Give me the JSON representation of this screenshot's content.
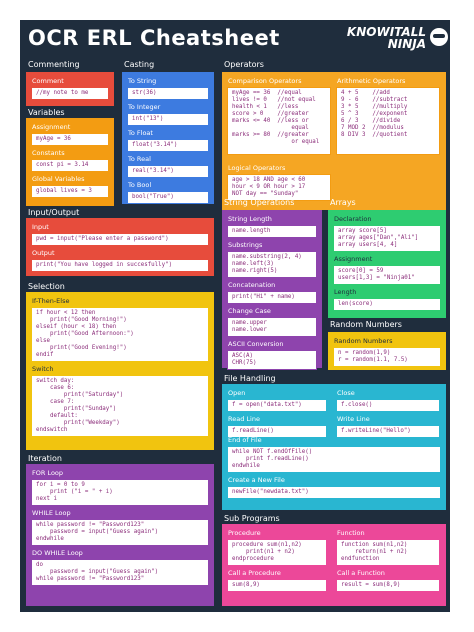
{
  "title": "OCR ERL Cheatsheet",
  "logo": {
    "line1": "KNOWITALL",
    "line2": "NINJA"
  },
  "sections": {
    "commenting": "Commenting",
    "casting": "Casting",
    "operators": "Operators",
    "variables": "Variables",
    "input_output": "Input/Output",
    "string_operations": "String Operations",
    "arrays": "Arrays",
    "selection": "Selection",
    "random_numbers": "Random Numbers",
    "file_handling": "File Handling",
    "iteration": "Iteration",
    "sub_programs": "Sub Programs"
  },
  "commenting": {
    "label": "Comment",
    "code": "//my note to me"
  },
  "casting": [
    {
      "label": "To String",
      "code": "str(36)"
    },
    {
      "label": "To Integer",
      "code": "int(\"13\")"
    },
    {
      "label": "To Float",
      "code": "float(\"3.14\")"
    },
    {
      "label": "To Real",
      "code": "real(\"3.14\")"
    },
    {
      "label": "To Bool",
      "code": "bool(\"True\")"
    }
  ],
  "variables": [
    {
      "label": "Assignment",
      "code": "myAge = 36"
    },
    {
      "label": "Constants",
      "code": "const pi = 3.14"
    },
    {
      "label": "Global Variables",
      "code": "global lives = 3"
    }
  ],
  "operators": {
    "comparison_label": "Comparison Operators",
    "comparison_code": "myAge == 36  //equal\nlives != 0   //not equal\nhealth < 1   //less\nscore > 0    //greater\nmarks <= 40  //less or\n                 equal\nmarks >= 80  //greater\n                 or equal",
    "arithmetic_label": "Arithmetic Operators",
    "arithmetic_code": "4 + 5    //add\n9 - 6    //subtract\n3 * 5    //multiply\n5 ^ 3    //exponent\n6 / 3    //divide\n7 MOD 2  //modulus\n8 DIV 3  //quotient",
    "logical_label": "Logical Operators",
    "logical_code": "age > 18 AND age < 60\nhour < 9 OR hour > 17\nNOT day == \"Sunday\""
  },
  "input_output": [
    {
      "label": "Input",
      "code": "pwd = input(\"Please enter a password\")"
    },
    {
      "label": "Output",
      "code": "print(\"You have logged in succesfully\")"
    }
  ],
  "string_operations": [
    {
      "label": "String Length",
      "code": "name.length"
    },
    {
      "label": "Substrings",
      "code": "name.substring(2, 4)\nname.left(3)\nname.right(5)"
    },
    {
      "label": "Concatenation",
      "code": "print(\"Hi\" + name)"
    },
    {
      "label": "Change Case",
      "code": "name.upper\nname.lower"
    },
    {
      "label": "ASCII Conversion",
      "code": "ASC(A)\nCHR(75)"
    }
  ],
  "arrays": [
    {
      "label": "Declaration",
      "code": "array score[5]\narray ages[\"Dan\",\"Ali\"]\narray users[4, 4]"
    },
    {
      "label": "Assignment",
      "code": "score[0] = 59\nusers[1,3] = \"Ninja01\""
    },
    {
      "label": "Length",
      "code": "len(score)"
    }
  ],
  "random_numbers": {
    "label": "Random Numbers",
    "code": "n = random(1,9)\nr = random(1.1, 7.5)"
  },
  "selection": [
    {
      "label": "If-Then-Else",
      "code": "if hour < 12 then\n    print(\"Good Morning!\")\nelseif (hour < 18) then\n    print(\"Good Afternoon:\")\nelse\n    print(\"Good Evening!\")\nendif"
    },
    {
      "label": "Switch",
      "code": "switch day:\n    case 6:\n        print(\"Saturday\")\n    case 7:\n        print(\"Sunday\")\n    default:\n        print(\"Weekday\")\nendswitch"
    }
  ],
  "file_handling": {
    "open_label": "Open",
    "open_code": "f = open(\"data.txt\")",
    "close_label": "Close",
    "close_code": "f.close()",
    "readline_label": "Read Line",
    "readline_code": "f.readLine()",
    "writeline_label": "Write Line",
    "writeline_code": "f.writeLine(\"Hello\")",
    "eof_label": "End of File",
    "eof_code": "while NOT f.endOfFile()\n    print f.readLine()\nendwhile",
    "new_label": "Create a New File",
    "new_code": "newFile(\"newdata.txt\")"
  },
  "iteration": [
    {
      "label": "FOR Loop",
      "code": "for i = 0 to 9\n    print (\"i = \" + i)\nnext i"
    },
    {
      "label": "WHILE Loop",
      "code": "while password != \"Password123\"\n    password = input(\"Guess again\")\nendwhile"
    },
    {
      "label": "DO WHILE Loop",
      "code": "do\n    password = input(\"Guess again\")\nwhile password != \"Password123\""
    }
  ],
  "sub_programs": {
    "procedure_label": "Procedure",
    "procedure_code": "procedure sum(n1,n2)\n    print(n1 + n2)\nendprocedure",
    "function_label": "Function",
    "function_code": "function sum(n1,n2)\n    return(n1 + n2)\nendfunction",
    "callproc_label": "Call a Procedure",
    "callproc_code": "sum(8,9)",
    "callfunc_label": "Call a Function",
    "callfunc_code": "result = sum(8,9)"
  }
}
